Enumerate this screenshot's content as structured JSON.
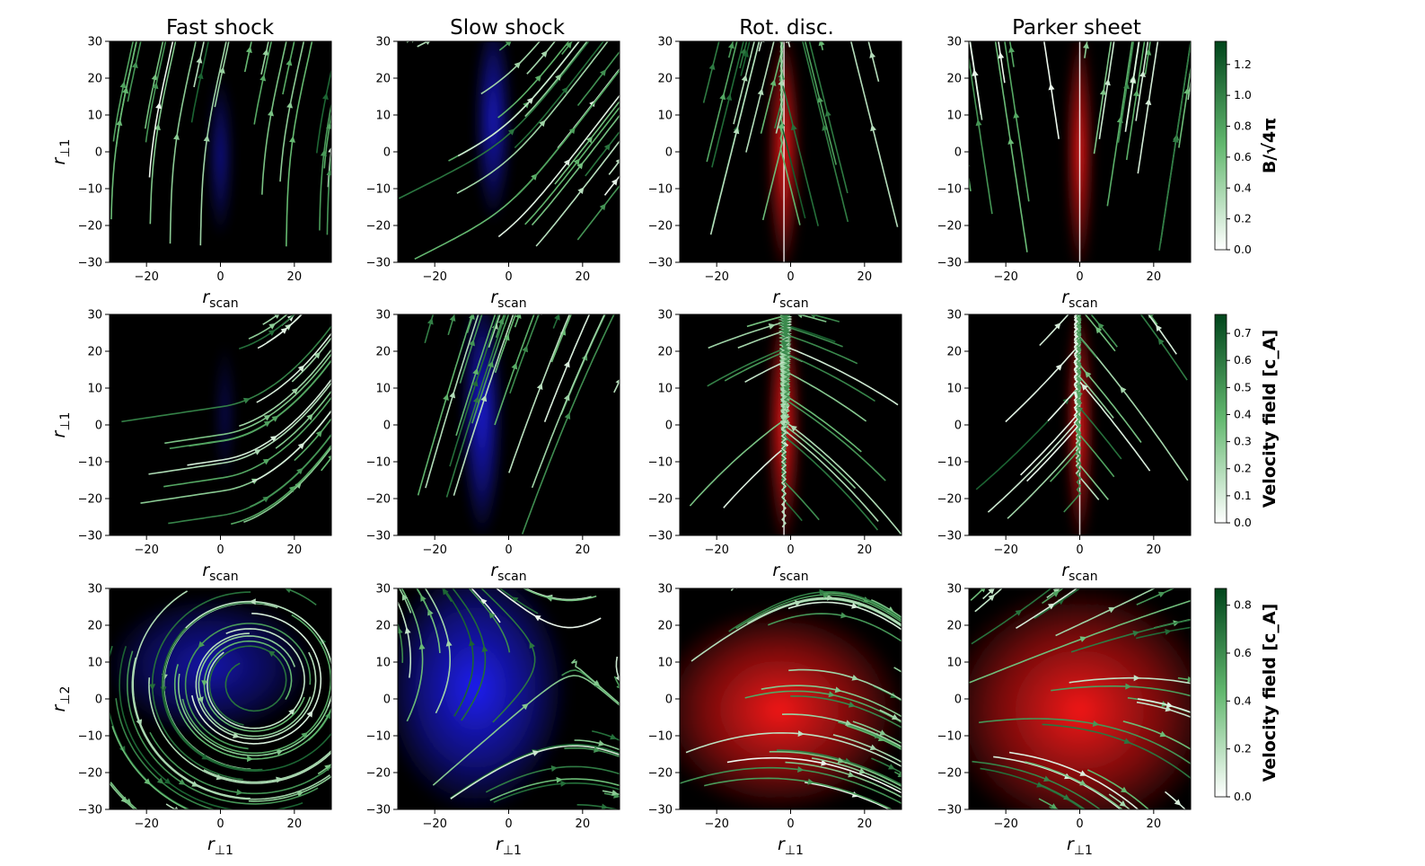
{
  "column_titles": [
    "Fast shock",
    "Slow shock",
    "Rot. disc.",
    "Parker sheet"
  ],
  "colormap": {
    "low": "#ffffff",
    "mid": "#63b86f",
    "high": "#00441b"
  },
  "overlay_colors": {
    "shock": "#2020ff",
    "discontinuity": "#ff1a1a",
    "background": "#000000"
  },
  "chart_data": [
    {
      "type": "heatmap",
      "row": 1,
      "description_field": "streamplot",
      "columns": [
        "Fast shock",
        "Slow shock",
        "Rot. disc.",
        "Parker sheet"
      ],
      "xlabel": "r_scan",
      "ylabel": "r_⊥1",
      "xlim": [
        -30,
        30
      ],
      "ylim": [
        -30,
        30
      ],
      "xticks": [
        -20,
        0,
        20
      ],
      "yticks": [
        30,
        20,
        10,
        0,
        -10,
        -20,
        -30
      ],
      "colorbar": {
        "label": "B/√4π",
        "ticks": [
          0.0,
          0.2,
          0.4,
          0.6,
          0.8,
          1.0,
          1.2
        ],
        "min": 0.0,
        "max": 1.35
      }
    },
    {
      "type": "heatmap",
      "row": 2,
      "description_field": "streamplot",
      "columns": [
        "Fast shock",
        "Slow shock",
        "Rot. disc.",
        "Parker sheet"
      ],
      "xlabel": "r_scan",
      "ylabel": "r_⊥1",
      "xlim": [
        -30,
        30
      ],
      "ylim": [
        -30,
        30
      ],
      "xticks": [
        -20,
        0,
        20
      ],
      "yticks": [
        30,
        20,
        10,
        0,
        -10,
        -20,
        -30
      ],
      "colorbar": {
        "label": "Velocity field [c_A]",
        "ticks": [
          0.0,
          0.1,
          0.2,
          0.3,
          0.4,
          0.5,
          0.6,
          0.7
        ],
        "min": 0.0,
        "max": 0.77
      }
    },
    {
      "type": "heatmap",
      "row": 3,
      "description_field": "streamplot",
      "columns": [
        "Fast shock",
        "Slow shock",
        "Rot. disc.",
        "Parker sheet"
      ],
      "xlabel": "r_⊥1",
      "ylabel": "r_⊥2",
      "xlim": [
        -30,
        30
      ],
      "ylim": [
        -30,
        30
      ],
      "xticks": [
        -20,
        0,
        20
      ],
      "yticks": [
        30,
        20,
        10,
        0,
        -10,
        -20,
        -30
      ],
      "colorbar": {
        "label": "Velocity field [c_A]",
        "ticks": [
          0.0,
          0.2,
          0.4,
          0.6,
          0.8
        ],
        "min": 0.0,
        "max": 0.87
      }
    }
  ]
}
